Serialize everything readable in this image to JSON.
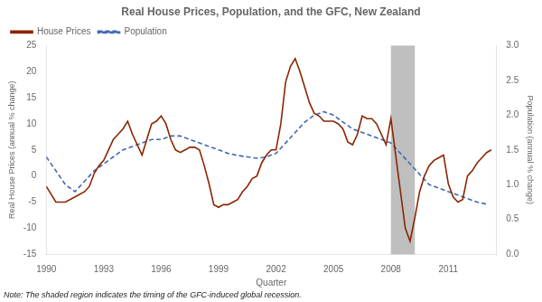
{
  "chart_data": {
    "type": "line",
    "title": "Real House Prices, Population, and the GFC, New Zealand",
    "x_label": "Quarter",
    "y_label": "Real House Prices (annual % change)",
    "y2_label": "Population (annual % change)",
    "note": "Note: The shaded region indicates the timing of the GFC-induced global recession.",
    "shaded_region": {
      "start": 2008.0,
      "end": 2009.25,
      "color": "#808080"
    },
    "xlim": [
      1990,
      2013.5
    ],
    "xticks": [
      1990,
      1993,
      1996,
      1999,
      2002,
      2005,
      2008,
      2011
    ],
    "ylim": [
      -15,
      25
    ],
    "yticks": [
      -15,
      -10,
      -5,
      0,
      5,
      10,
      15,
      20,
      25
    ],
    "y2lim": [
      0,
      3
    ],
    "y2ticks": [
      {
        "value": 0,
        "label": "0.0"
      },
      0.5,
      {
        "value": 1.0,
        "label": "1.0"
      },
      1.5,
      {
        "value": 2.0,
        "label": "2.0"
      },
      2.5,
      {
        "value": 3.0,
        "label": "3.0"
      }
    ],
    "grid": false,
    "legend": "upper left",
    "series": [
      {
        "name": "House Prices",
        "color": "#8B2500",
        "line_style": "solid",
        "marker": "none",
        "axis": "y",
        "x": [
          1990.0,
          1990.5,
          1991.0,
          1991.5,
          1992.0,
          1992.25,
          1992.5,
          1992.75,
          1993.0,
          1993.25,
          1993.5,
          1993.75,
          1994.0,
          1994.25,
          1994.5,
          1994.75,
          1995.0,
          1995.25,
          1995.5,
          1995.75,
          1996.0,
          1996.25,
          1996.5,
          1996.75,
          1997.0,
          1997.25,
          1997.5,
          1997.75,
          1998.0,
          1998.25,
          1998.5,
          1998.75,
          1999.0,
          1999.25,
          1999.5,
          1999.75,
          2000.0,
          2000.25,
          2000.5,
          2000.75,
          2001.0,
          2001.25,
          2001.5,
          2001.75,
          2002.0,
          2002.25,
          2002.5,
          2002.75,
          2003.0,
          2003.25,
          2003.5,
          2003.75,
          2004.0,
          2004.25,
          2004.5,
          2004.75,
          2005.0,
          2005.25,
          2005.5,
          2005.75,
          2006.0,
          2006.25,
          2006.5,
          2006.75,
          2007.0,
          2007.25,
          2007.5,
          2007.75,
          2008.0,
          2008.25,
          2008.5,
          2008.75,
          2009.0,
          2009.25,
          2009.5,
          2009.75,
          2010.0,
          2010.25,
          2010.5,
          2010.75,
          2011.0,
          2011.25,
          2011.5,
          2011.75,
          2012.0,
          2012.25,
          2012.5,
          2012.75,
          2013.0,
          2013.25
        ],
        "values": [
          -2.0,
          -5.0,
          -5.0,
          -4.0,
          -3.0,
          -2.0,
          0.5,
          2.0,
          3.0,
          5.0,
          7.0,
          8.0,
          9.0,
          10.5,
          8.0,
          6.0,
          4.0,
          7.0,
          10.0,
          10.5,
          11.5,
          10.0,
          7.0,
          5.0,
          4.5,
          5.0,
          5.5,
          5.5,
          5.0,
          2.0,
          -1.5,
          -5.5,
          -6.0,
          -5.5,
          -5.5,
          -5.0,
          -4.5,
          -3.0,
          -2.0,
          -0.5,
          0.0,
          2.5,
          4.0,
          5.0,
          5.0,
          10.0,
          18.0,
          21.0,
          22.5,
          20.0,
          17.0,
          14.0,
          12.0,
          11.5,
          10.5,
          10.5,
          10.5,
          10.0,
          9.0,
          6.5,
          6.0,
          8.0,
          11.5,
          11.0,
          11.0,
          10.0,
          8.0,
          6.0,
          11.0,
          4.0,
          -3.0,
          -10.0,
          -12.5,
          -8.0,
          -3.0,
          0.0,
          2.0,
          3.0,
          3.5,
          4.0,
          -1.5,
          -4.0,
          -5.0,
          -4.5,
          0.0,
          1.0,
          2.5,
          3.5,
          4.5,
          5.0
        ]
      },
      {
        "name": "Population",
        "color": "#4169B0",
        "line_style": "dashed",
        "marker": "none",
        "axis": "y2",
        "x": [
          1990.0,
          1990.5,
          1991.0,
          1991.5,
          1992.0,
          1992.5,
          1993.0,
          1993.5,
          1994.0,
          1994.5,
          1995.0,
          1995.5,
          1996.0,
          1996.5,
          1997.0,
          1997.5,
          1998.0,
          1998.5,
          1999.0,
          1999.5,
          2000.0,
          2000.5,
          2001.0,
          2001.5,
          2002.0,
          2002.5,
          2003.0,
          2003.5,
          2004.0,
          2004.5,
          2005.0,
          2005.5,
          2006.0,
          2006.5,
          2007.0,
          2007.5,
          2008.0,
          2008.5,
          2009.0,
          2009.5,
          2010.0,
          2010.5,
          2011.0,
          2011.5,
          2012.0,
          2012.5,
          2013.0
        ],
        "values": [
          1.4,
          1.2,
          1.0,
          0.9,
          1.05,
          1.2,
          1.3,
          1.4,
          1.5,
          1.55,
          1.6,
          1.65,
          1.65,
          1.7,
          1.7,
          1.65,
          1.6,
          1.55,
          1.5,
          1.45,
          1.42,
          1.4,
          1.38,
          1.4,
          1.45,
          1.6,
          1.75,
          1.9,
          2.0,
          2.05,
          2.0,
          1.9,
          1.8,
          1.75,
          1.7,
          1.65,
          1.6,
          1.45,
          1.3,
          1.15,
          1.0,
          0.95,
          0.9,
          0.85,
          0.8,
          0.75,
          0.72
        ]
      }
    ]
  }
}
